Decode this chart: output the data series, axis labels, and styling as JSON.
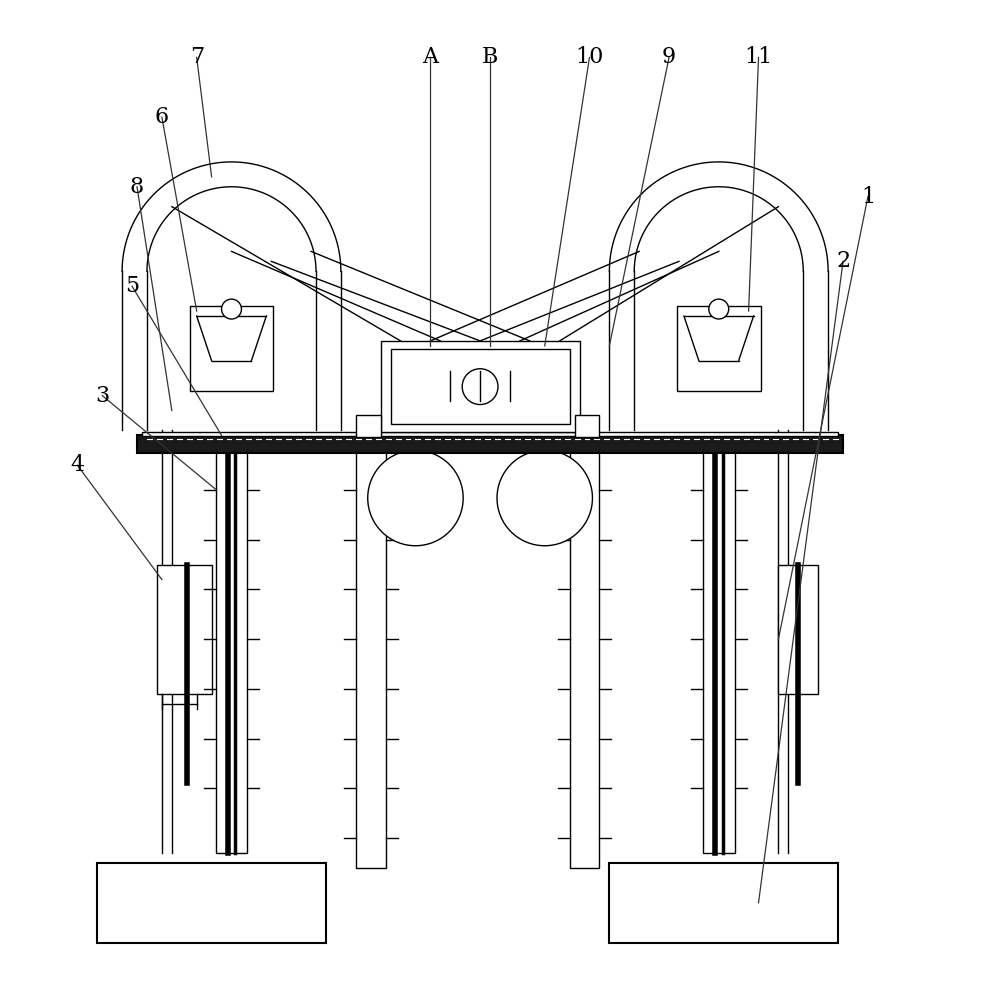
{
  "bg_color": "#ffffff",
  "line_color": "#000000",
  "fig_width": 9.94,
  "fig_height": 10.0,
  "lw_thin": 1.0,
  "lw_med": 1.5,
  "lw_thick": 2.5,
  "lw_vthick": 4.0
}
